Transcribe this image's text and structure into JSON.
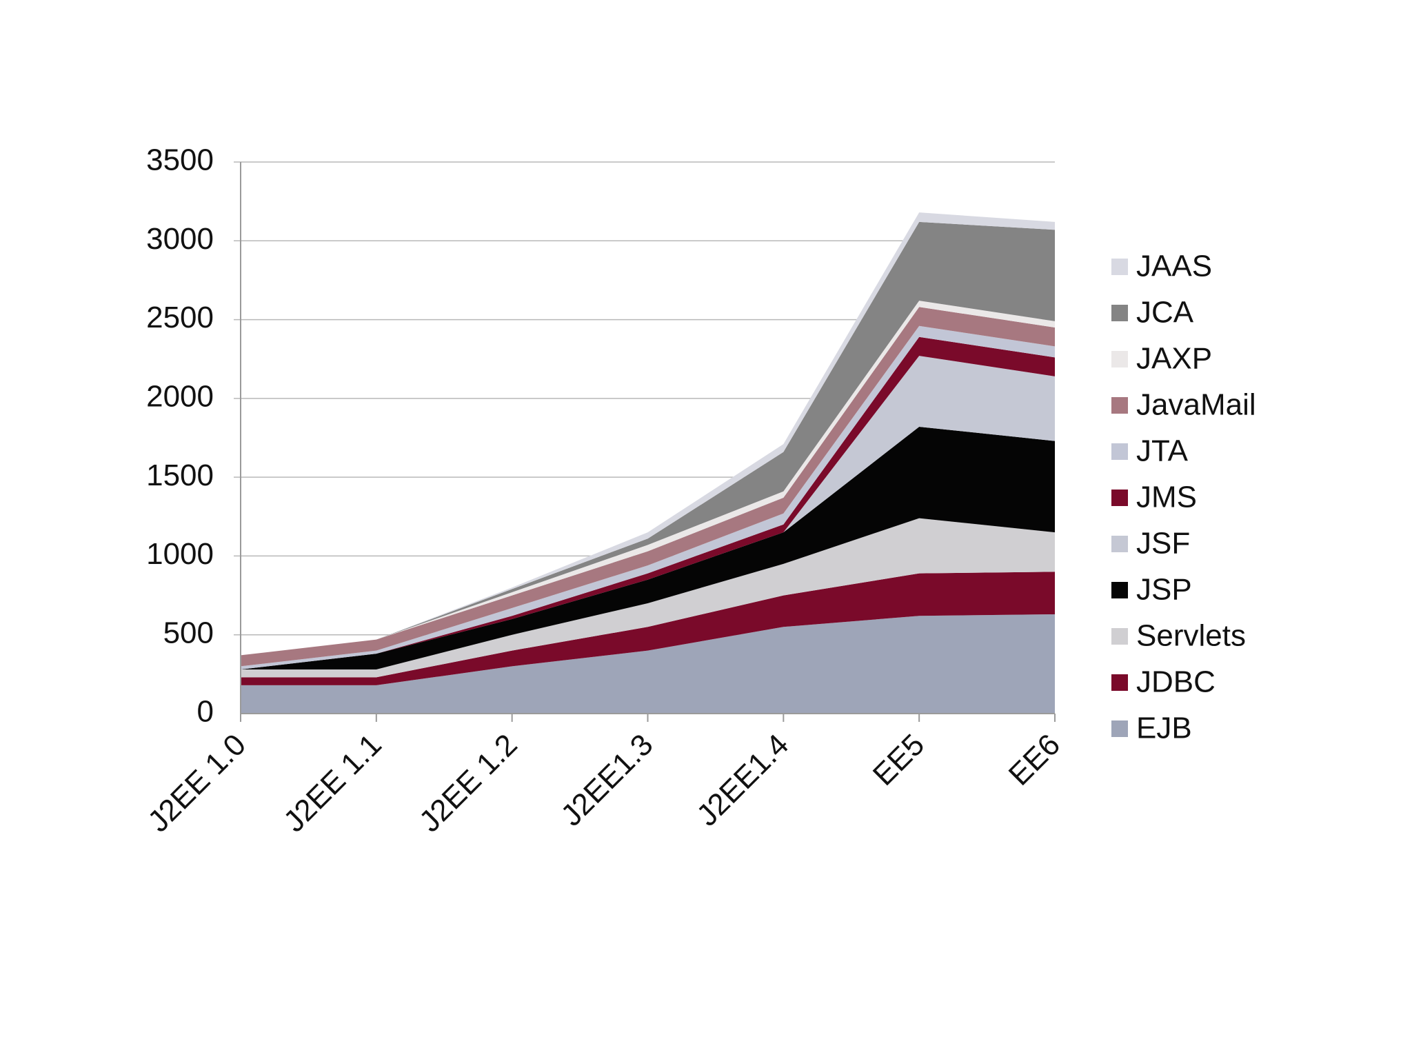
{
  "chart_data": {
    "type": "area",
    "stacked": true,
    "title": "",
    "xlabel": "",
    "ylabel": "",
    "ylim": [
      0,
      3500
    ],
    "yticks": [
      0,
      500,
      1000,
      1500,
      2000,
      2500,
      3000,
      3500
    ],
    "categories": [
      "J2EE 1.0",
      "J2EE 1.1",
      "J2EE 1.2",
      "J2EE1.3",
      "J2EE1.4",
      "EE5",
      "EE6"
    ],
    "legend_position": "right",
    "series": [
      {
        "name": "EJB",
        "color": "#9ea5b8",
        "values": [
          180,
          180,
          300,
          400,
          550,
          620,
          630
        ]
      },
      {
        "name": "JDBC",
        "color": "#7a0a2a",
        "values": [
          50,
          50,
          100,
          150,
          200,
          270,
          270
        ]
      },
      {
        "name": "Servlets",
        "color": "#d0cfd2",
        "values": [
          50,
          50,
          100,
          150,
          200,
          350,
          250
        ]
      },
      {
        "name": "JSP",
        "color": "#050505",
        "values": [
          0,
          100,
          100,
          150,
          200,
          580,
          580
        ]
      },
      {
        "name": "JSF",
        "color": "#c5c8d4",
        "values": [
          0,
          0,
          0,
          0,
          0,
          450,
          410
        ]
      },
      {
        "name": "JMS",
        "color": "#7a0a2a",
        "values": [
          0,
          0,
          20,
          40,
          50,
          120,
          120
        ]
      },
      {
        "name": "JTA",
        "color": "#c2c6d6",
        "values": [
          20,
          20,
          50,
          50,
          70,
          70,
          70
        ]
      },
      {
        "name": "JavaMail",
        "color": "#a77880",
        "values": [
          70,
          70,
          80,
          90,
          100,
          120,
          120
        ]
      },
      {
        "name": "JAXP",
        "color": "#ebe8e8",
        "values": [
          0,
          0,
          20,
          40,
          40,
          40,
          40
        ]
      },
      {
        "name": "JCA",
        "color": "#848484",
        "values": [
          0,
          0,
          20,
          40,
          250,
          500,
          580
        ]
      },
      {
        "name": "JAAS",
        "color": "#d8d9e2",
        "values": [
          0,
          0,
          10,
          40,
          50,
          60,
          50
        ]
      }
    ]
  }
}
